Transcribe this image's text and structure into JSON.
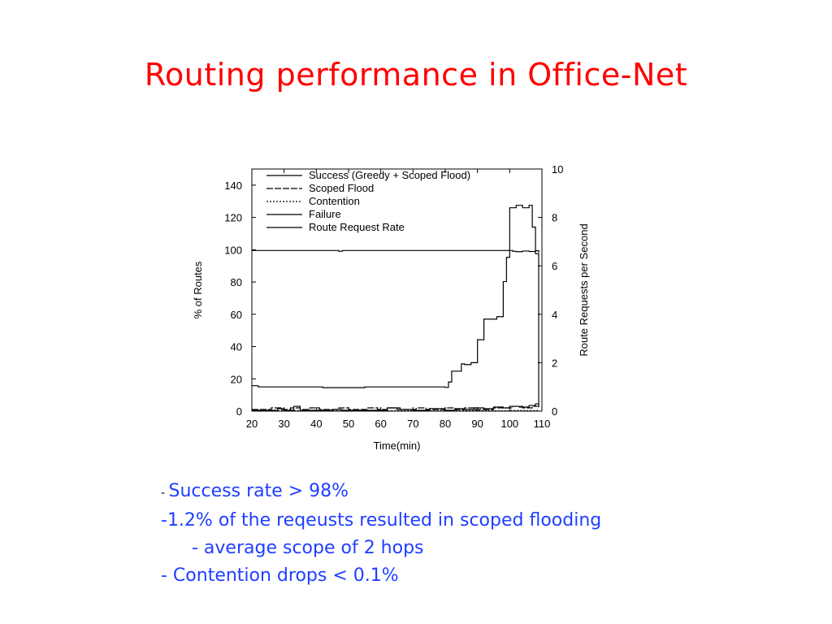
{
  "slide": {
    "title": "Routing performance in Office-Net",
    "bullets": [
      {
        "prefix": "- ",
        "text": "Success rate > 98%"
      },
      {
        "prefix": "",
        "text": "-1.2% of the reqeusts resulted in scoped flooding"
      },
      {
        "prefix": "",
        "text": "- average scope of 2 hops"
      },
      {
        "prefix": "",
        "text": "- Contention drops < 0.1%"
      }
    ]
  },
  "chart_data": {
    "type": "line",
    "title": "",
    "xlabel": "Time(min)",
    "ylabel": "% of Routes",
    "y2label": "Route Requests per Second",
    "xlim": [
      20,
      110
    ],
    "ylim": [
      0,
      150
    ],
    "y2lim": [
      0,
      10
    ],
    "xticks": [
      20,
      30,
      40,
      50,
      60,
      70,
      80,
      90,
      100,
      110
    ],
    "yticks": [
      0,
      20,
      40,
      60,
      80,
      100,
      120,
      140
    ],
    "y2ticks": [
      0,
      2,
      4,
      6,
      8,
      10
    ],
    "legend_position": "top-left",
    "grid": false,
    "series": [
      {
        "name": "Success (Greedy + Scoped Flood)",
        "axis": "left",
        "step": true,
        "x": [
          20,
          47,
          48,
          101,
          102,
          104,
          106,
          108,
          109
        ],
        "y": [
          99.5,
          99,
          99.5,
          99,
          98.8,
          99.2,
          98.9,
          99.4,
          98
        ]
      },
      {
        "name": "Scoped Flood",
        "axis": "left",
        "step": true,
        "x": [
          20,
          23,
          26,
          29,
          32,
          35,
          38,
          41,
          44,
          47,
          50,
          53,
          56,
          59,
          62,
          65,
          68,
          71,
          74,
          77,
          80,
          83,
          86,
          89,
          92,
          95,
          98,
          101,
          104,
          107,
          109
        ],
        "y": [
          1,
          1,
          2,
          1,
          2,
          1,
          2,
          1,
          1,
          2,
          1,
          1,
          2,
          1,
          2,
          1,
          1,
          2,
          1,
          1,
          2,
          1,
          2,
          1,
          1,
          2,
          2,
          3,
          2,
          3,
          2
        ]
      },
      {
        "name": "Contention",
        "axis": "left",
        "step": true,
        "x": [
          20,
          30,
          40,
          50,
          60,
          70,
          80,
          90,
          95,
          100,
          105,
          109
        ],
        "y": [
          0.2,
          0.3,
          0.2,
          0.3,
          0.2,
          0.2,
          0.3,
          0.3,
          0.2,
          0.4,
          0.3,
          0.5
        ]
      },
      {
        "name": "Failure",
        "axis": "left",
        "step": true,
        "x": [
          20,
          28,
          30,
          33,
          35,
          45,
          48,
          60,
          62,
          66,
          70,
          75,
          80,
          83,
          86,
          89,
          92,
          95,
          98,
          100,
          103,
          106,
          108,
          109
        ],
        "y": [
          0.5,
          1.5,
          0.5,
          3,
          0.5,
          1,
          0.5,
          0.5,
          2,
          1,
          0.5,
          1.5,
          0.5,
          1.5,
          1,
          2,
          1.5,
          2.5,
          2,
          3,
          2.5,
          3.5,
          4.5,
          4
        ]
      },
      {
        "name": "Route Request Rate",
        "axis": "right",
        "step": true,
        "x": [
          20,
          22,
          30,
          42,
          55,
          70,
          80,
          81,
          82,
          85,
          86,
          88,
          90,
          92,
          96,
          98,
          99,
          100,
          102,
          104,
          106,
          107,
          108,
          109
        ],
        "y": [
          1.05,
          1.0,
          1.0,
          0.97,
          1.0,
          1.0,
          0.98,
          1.2,
          1.65,
          1.95,
          1.92,
          2.0,
          2.95,
          3.8,
          3.9,
          5.35,
          6.35,
          8.4,
          8.5,
          8.4,
          8.5,
          7.6,
          6.5,
          0.2
        ]
      }
    ]
  }
}
